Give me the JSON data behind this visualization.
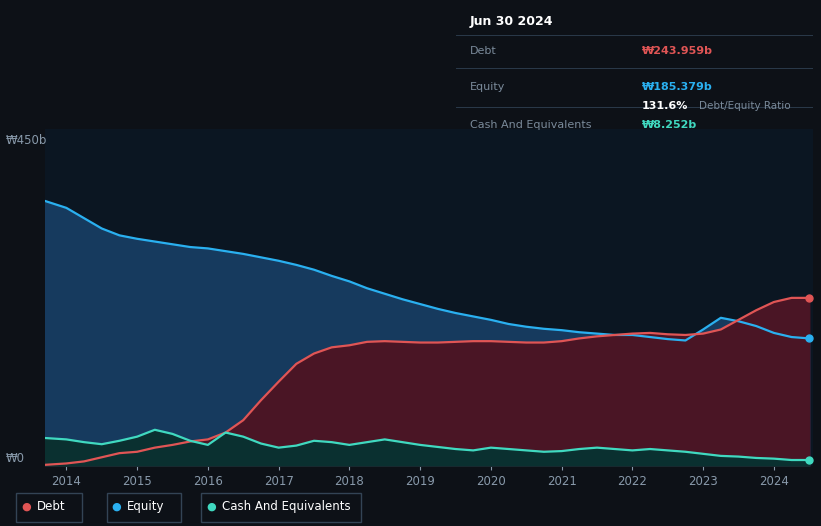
{
  "bg_color": "#0d1117",
  "plot_bg_color": "#0b1622",
  "grid_color": "#1e2d40",
  "title_box": {
    "date": "Jun 30 2024",
    "debt_label": "Debt",
    "debt_value": "₩243.959b",
    "equity_label": "Equity",
    "equity_value": "₩185.379b",
    "ratio": "131.6%",
    "ratio_label": "Debt/Equity Ratio",
    "cash_label": "Cash And Equivalents",
    "cash_value": "₩8.252b"
  },
  "y_label_450": "₩450b",
  "y_label_0": "₩0",
  "x_ticks": [
    2014,
    2015,
    2016,
    2017,
    2018,
    2019,
    2020,
    2021,
    2022,
    2023,
    2024
  ],
  "ylim": [
    0,
    490
  ],
  "equity_color": "#2ab0f0",
  "debt_color": "#e05555",
  "cash_color": "#40d9c0",
  "equity_fill": "#163a5e",
  "debt_fill": "#4a1525",
  "cash_fill": "#0a3030",
  "equity_data": {
    "years": [
      2013.7,
      2014.0,
      2014.25,
      2014.5,
      2014.75,
      2015.0,
      2015.25,
      2015.5,
      2015.75,
      2016.0,
      2016.25,
      2016.5,
      2016.75,
      2017.0,
      2017.25,
      2017.5,
      2017.75,
      2018.0,
      2018.25,
      2018.5,
      2018.75,
      2019.0,
      2019.25,
      2019.5,
      2019.75,
      2020.0,
      2020.25,
      2020.5,
      2020.75,
      2021.0,
      2021.25,
      2021.5,
      2021.75,
      2022.0,
      2022.25,
      2022.5,
      2022.75,
      2023.0,
      2023.25,
      2023.5,
      2023.75,
      2024.0,
      2024.25,
      2024.5
    ],
    "values": [
      385,
      375,
      360,
      345,
      335,
      330,
      326,
      322,
      318,
      316,
      312,
      308,
      303,
      298,
      292,
      285,
      276,
      268,
      258,
      250,
      242,
      235,
      228,
      222,
      217,
      212,
      206,
      202,
      199,
      197,
      194,
      192,
      190,
      190,
      187,
      184,
      182,
      198,
      215,
      210,
      203,
      193,
      187,
      185
    ]
  },
  "debt_data": {
    "years": [
      2013.7,
      2014.0,
      2014.25,
      2014.5,
      2014.75,
      2015.0,
      2015.25,
      2015.5,
      2015.75,
      2016.0,
      2016.25,
      2016.5,
      2016.75,
      2017.0,
      2017.25,
      2017.5,
      2017.75,
      2018.0,
      2018.25,
      2018.5,
      2018.75,
      2019.0,
      2019.25,
      2019.5,
      2019.75,
      2020.0,
      2020.25,
      2020.5,
      2020.75,
      2021.0,
      2021.25,
      2021.5,
      2021.75,
      2022.0,
      2022.25,
      2022.5,
      2022.75,
      2023.0,
      2023.25,
      2023.5,
      2023.75,
      2024.0,
      2024.25,
      2024.5
    ],
    "values": [
      1,
      3,
      6,
      12,
      18,
      20,
      26,
      30,
      35,
      38,
      48,
      66,
      95,
      122,
      148,
      163,
      172,
      175,
      180,
      181,
      180,
      179,
      179,
      180,
      181,
      181,
      180,
      179,
      179,
      181,
      185,
      188,
      190,
      192,
      193,
      191,
      190,
      192,
      198,
      212,
      226,
      238,
      244,
      244
    ]
  },
  "cash_data": {
    "years": [
      2013.7,
      2014.0,
      2014.25,
      2014.5,
      2014.75,
      2015.0,
      2015.25,
      2015.5,
      2015.75,
      2016.0,
      2016.25,
      2016.5,
      2016.75,
      2017.0,
      2017.25,
      2017.5,
      2017.75,
      2018.0,
      2018.25,
      2018.5,
      2018.75,
      2019.0,
      2019.25,
      2019.5,
      2019.75,
      2020.0,
      2020.25,
      2020.5,
      2020.75,
      2021.0,
      2021.25,
      2021.5,
      2021.75,
      2022.0,
      2022.25,
      2022.5,
      2022.75,
      2023.0,
      2023.25,
      2023.5,
      2023.75,
      2024.0,
      2024.25,
      2024.5
    ],
    "values": [
      40,
      38,
      34,
      31,
      36,
      42,
      52,
      46,
      36,
      30,
      48,
      42,
      32,
      26,
      29,
      36,
      34,
      30,
      34,
      38,
      34,
      30,
      27,
      24,
      22,
      26,
      24,
      22,
      20,
      21,
      24,
      26,
      24,
      22,
      24,
      22,
      20,
      17,
      14,
      13,
      11,
      10,
      8,
      8
    ]
  },
  "legend": [
    {
      "label": "Debt",
      "color": "#e05555"
    },
    {
      "label": "Equity",
      "color": "#2ab0f0"
    },
    {
      "label": "Cash And Equivalents",
      "color": "#40d9c0"
    }
  ]
}
